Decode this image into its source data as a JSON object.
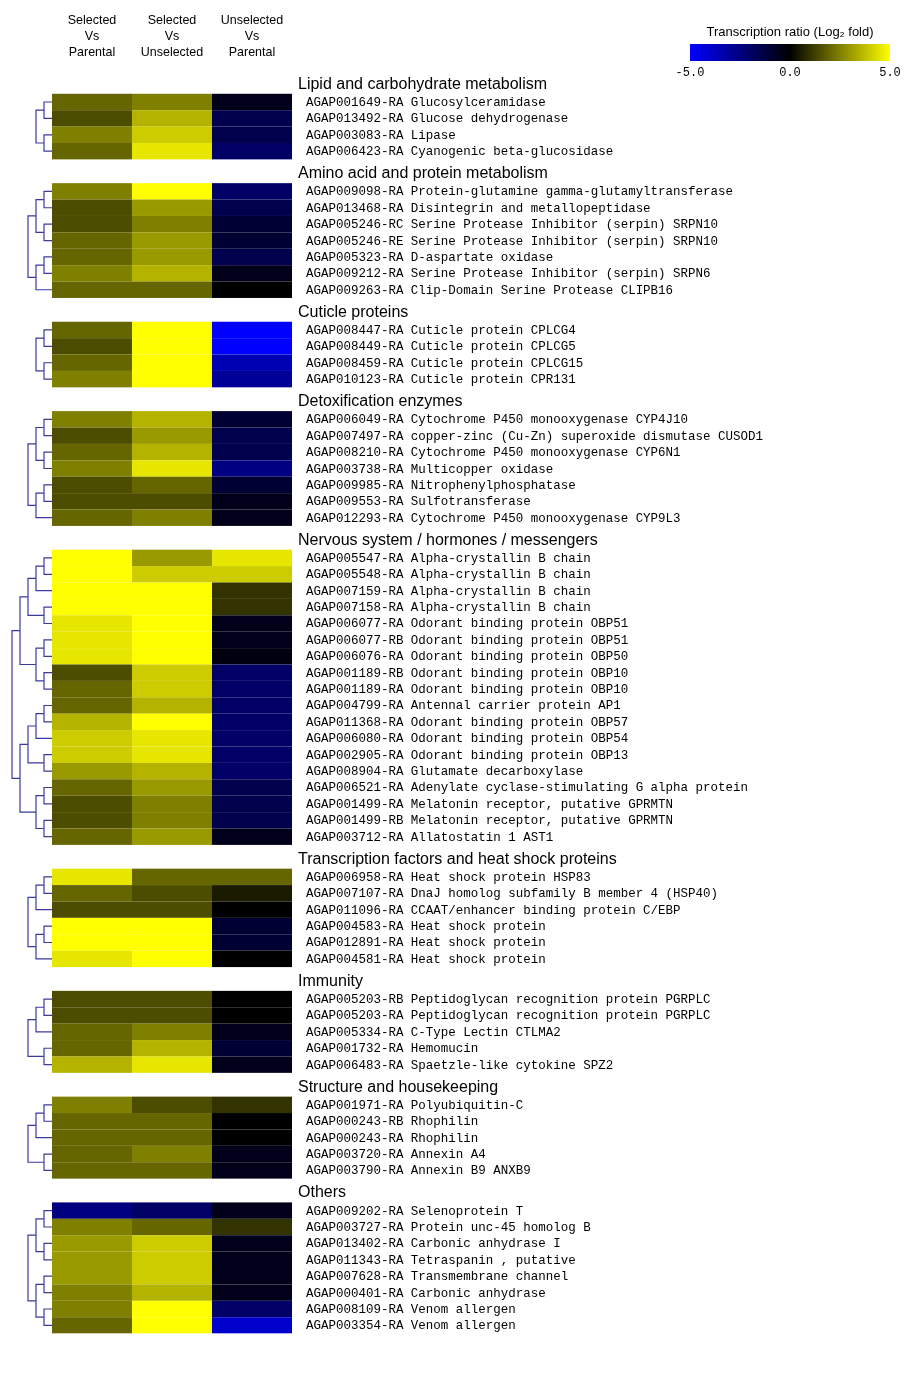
{
  "chart_data": {
    "type": "heatmap",
    "categories": [
      "Selected Vs Parental",
      "Selected Vs Unselected",
      "Unselected Vs Parental"
    ],
    "clabel": "Transcription ratio (Log₂ fold)",
    "clim": [
      -5,
      5
    ],
    "cticks": [
      {
        "value": -5,
        "label": "-5.0"
      },
      {
        "value": 0,
        "label": "0.0"
      },
      {
        "value": 5,
        "label": "5.0"
      }
    ],
    "annotations": [
      "Lipid and carbohydrate metabolism",
      "Amino acid and protein metabolism",
      "Cuticle proteins",
      "Detoxification enzymes",
      "Nervous system / hormones / messengers",
      "Transcription factors and heat shock proteins",
      "Immunity",
      "Structure and housekeeping",
      "Others"
    ],
    "y_categories": [
      "AGAP001649-RA Glucosylceramidase",
      "AGAP013492-RA Glucose dehydrogenase",
      "AGAP003083-RA Lipase",
      "AGAP006423-RA Cyanogenic beta-glucosidase",
      "AGAP009098-RA Protein-glutamine gamma-glutamyltransferase",
      "AGAP013468-RA Disintegrin and metallopeptidase",
      "AGAP005246-RC Serine Protease Inhibitor (serpin) SRPN10",
      "AGAP005246-RE Serine Protease Inhibitor (serpin) SRPN10",
      "AGAP005323-RA D-aspartate oxidase",
      "AGAP009212-RA Serine Protease Inhibitor (serpin) SRPN6",
      "AGAP009263-RA Clip-Domain Serine Protease CLIPB16",
      "AGAP008447-RA Cuticle protein CPLCG4",
      "AGAP008449-RA Cuticle protein CPLCG5",
      "AGAP008459-RA Cuticle protein CPLCG15",
      "AGAP010123-RA Cuticle protein CPR131",
      "AGAP006049-RA Cytochrome P450 monooxygenase CYP4J10",
      "AGAP007497-RA copper-zinc (Cu-Zn) superoxide dismutase CUSOD1",
      "AGAP008210-RA Cytochrome P450 monooxygenase CYP6N1",
      "AGAP003738-RA Multicopper oxidase",
      "AGAP009985-RA Nitrophenylphosphatase",
      "AGAP009553-RA Sulfotransferase",
      "AGAP012293-RA Cytochrome P450 monooxygenase CYP9L3",
      "AGAP005547-RA Alpha-crystallin B chain",
      "AGAP005548-RA Alpha-crystallin B chain",
      "AGAP007159-RA Alpha-crystallin B chain",
      "AGAP007158-RA Alpha-crystallin B chain",
      "AGAP006077-RA Odorant binding protein OBP51",
      "AGAP006077-RB Odorant binding protein OBP51",
      "AGAP006076-RA Odorant binding protein OBP50",
      "AGAP001189-RB Odorant binding protein OBP10",
      "AGAP001189-RA Odorant binding protein OBP10",
      "AGAP004799-RA Antennal carrier protein AP1",
      "AGAP011368-RA Odorant binding protein OBP57",
      "AGAP006080-RA Odorant binding protein OBP54",
      "AGAP002905-RA Odorant binding protein OBP13",
      "AGAP008904-RA Glutamate decarboxylase",
      "AGAP006521-RA Adenylate cyclase-stimulating G alpha protein",
      "AGAP001499-RA Melatonin receptor, putative GPRMTN",
      "AGAP001499-RB Melatonin receptor, putative GPRMTN",
      "AGAP003712-RA Allatostatin 1 AST1",
      "AGAP006958-RA Heat shock protein HSP83",
      "AGAP007107-RA DnaJ homolog subfamily B member 4 (HSP40)",
      "AGAP011096-RA CCAAT/enhancer binding protein C/EBP",
      "AGAP004583-RA Heat shock protein",
      "AGAP012891-RA Heat shock protein",
      "AGAP004581-RA Heat shock protein",
      "AGAP005203-RB Peptidoglycan recognition protein PGRPLC",
      "AGAP005203-RA Peptidoglycan recognition protein PGRPLC",
      "AGAP005334-RA C-Type Lectin CTLMA2",
      "AGAP001732-RA Hemomucin",
      "AGAP006483-RA Spaetzle-like cytokine SPZ2",
      "AGAP001971-RA Polyubiquitin-C",
      "AGAP000243-RB Rhophilin",
      "AGAP000243-RA Rhophilin",
      "AGAP003720-RA Annexin A4",
      "AGAP003790-RA Annexin B9 ANXB9",
      "AGAP009202-RA Selenoprotein T",
      "AGAP003727-RA Protein unc-45 homolog B",
      "AGAP013402-RA Carbonic anhydrase I",
      "AGAP011343-RA Tetraspanin , putative",
      "AGAP007628-RA Transmembrane channel",
      "AGAP000401-RA Carbonic anhydrase",
      "AGAP008109-RA Venom allergen",
      "AGAP003354-RA Venom allergen"
    ],
    "cells": [
      [
        2,
        2.5,
        -0.5
      ],
      [
        1.5,
        3.5,
        -1.5
      ],
      [
        2.5,
        4,
        -1.5
      ],
      [
        2,
        4.5,
        -2
      ],
      [
        2.5,
        5,
        -2
      ],
      [
        1.5,
        3,
        -1.5
      ],
      [
        1.5,
        2.5,
        -1
      ],
      [
        2,
        3,
        -1
      ],
      [
        2,
        3,
        -1.5
      ],
      [
        2.5,
        3.5,
        -0.5
      ],
      [
        2,
        2,
        0
      ],
      [
        2,
        5,
        -5
      ],
      [
        1.5,
        5,
        -5
      ],
      [
        2,
        5,
        -3.5
      ],
      [
        2.5,
        5,
        -3
      ],
      [
        2.5,
        3.5,
        -1
      ],
      [
        1.5,
        3,
        -1.5
      ],
      [
        2,
        3.5,
        -1.5
      ],
      [
        2.5,
        4.5,
        -2.5
      ],
      [
        1.5,
        2,
        -1
      ],
      [
        1.5,
        1.5,
        -0.5
      ],
      [
        2,
        2.5,
        -0.5
      ],
      [
        5,
        3,
        4.5
      ],
      [
        5,
        4,
        4
      ],
      [
        5,
        5,
        1
      ],
      [
        5,
        5,
        1
      ],
      [
        4.5,
        5,
        -0.5
      ],
      [
        4.5,
        5,
        -0.5
      ],
      [
        4.5,
        5,
        -0.3
      ],
      [
        1.5,
        4,
        -2
      ],
      [
        2,
        4,
        -2
      ],
      [
        2,
        3.5,
        -2
      ],
      [
        3.5,
        5,
        -2
      ],
      [
        4,
        4.5,
        -2
      ],
      [
        4,
        4.5,
        -2
      ],
      [
        3,
        3.5,
        -2
      ],
      [
        2,
        3,
        -1.5
      ],
      [
        1.5,
        2.5,
        -1.5
      ],
      [
        1.5,
        2.5,
        -1.5
      ],
      [
        2,
        3,
        -0.5
      ],
      [
        4.5,
        2,
        2
      ],
      [
        2,
        1.5,
        0.5
      ],
      [
        1.5,
        1.5,
        0
      ],
      [
        5,
        5,
        -1
      ],
      [
        5,
        5,
        -1
      ],
      [
        4.5,
        5,
        0
      ],
      [
        1.5,
        1.5,
        0
      ],
      [
        1.5,
        1.5,
        0
      ],
      [
        2,
        2.5,
        -0.5
      ],
      [
        2,
        3.5,
        -1
      ],
      [
        3.5,
        4.5,
        -0.5
      ],
      [
        2.5,
        1.5,
        1
      ],
      [
        2,
        2,
        0
      ],
      [
        2,
        2,
        0
      ],
      [
        2,
        2.5,
        -0.5
      ],
      [
        2,
        2,
        -0.5
      ],
      [
        -2.5,
        -2,
        -0.5
      ],
      [
        2.5,
        2,
        1
      ],
      [
        3,
        4,
        -0.5
      ],
      [
        3,
        4,
        -0.5
      ],
      [
        3,
        4,
        -0.5
      ],
      [
        2.5,
        3.5,
        -0.5
      ],
      [
        2.5,
        5,
        -2
      ],
      [
        2,
        5,
        -4
      ]
    ]
  }
}
